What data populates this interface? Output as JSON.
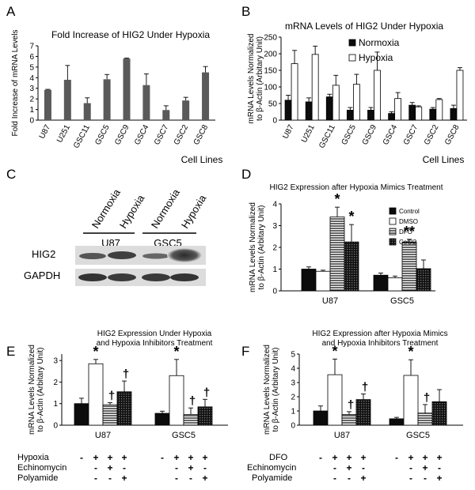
{
  "colors": {
    "bar_dark": "#5a5a5a",
    "bar_black": "#0c0c0c",
    "blot_bg": "#dcdcdc",
    "band": "#3a3a3a"
  },
  "panels": {
    "A": {
      "letter": "A"
    },
    "B": {
      "letter": "B"
    },
    "C": {
      "letter": "C",
      "col_labels": [
        "Normoxia",
        "Hypoxia",
        "Normoxia",
        "Hypoxia"
      ],
      "groups": [
        "U87",
        "GSC5"
      ],
      "rows": [
        "HIG2",
        "GAPDH"
      ]
    },
    "D": {
      "letter": "D"
    },
    "E": {
      "letter": "E",
      "table": {
        "rows": [
          {
            "label": "Hypoxia",
            "U87": [
              "-",
              "+",
              "+",
              "+"
            ],
            "GSC5": [
              "-",
              "+",
              "+",
              "+"
            ]
          },
          {
            "label": "Echinomycin",
            "U87": [
              "",
              "-",
              "+",
              "-"
            ],
            "GSC5": [
              "",
              "-",
              "+",
              "-"
            ]
          },
          {
            "label": "Polyamide",
            "U87": [
              "",
              "-",
              "-",
              "+"
            ],
            "GSC5": [
              "",
              "-",
              "-",
              "+"
            ]
          }
        ]
      }
    },
    "F": {
      "letter": "F",
      "table": {
        "rows": [
          {
            "label": "DFO",
            "U87": [
              "-",
              "+",
              "+",
              "+"
            ],
            "GSC5": [
              "-",
              "+",
              "+",
              "+"
            ]
          },
          {
            "label": "Echinomycin",
            "U87": [
              "",
              "-",
              "+",
              "-"
            ],
            "GSC5": [
              "",
              "-",
              "+",
              "-"
            ]
          },
          {
            "label": "Polyamide",
            "U87": [
              "",
              "-",
              "-",
              "+"
            ],
            "GSC5": [
              "",
              "-",
              "-",
              "+"
            ]
          }
        ]
      }
    }
  },
  "chart_data": [
    {
      "id": "A",
      "type": "bar",
      "title": "Fold Increase of HIG2 Under Hypoxia",
      "ylabel": "Fold Increase of mRNA Levels",
      "xlabel": "Cell Lines",
      "ylim": [
        0,
        7
      ],
      "yticks": [
        "0",
        "1",
        "2",
        "3",
        "4",
        "5",
        "6",
        "7"
      ],
      "categories": [
        "U87",
        "U251",
        "GSC11",
        "GSC5",
        "GSC9",
        "GSC4",
        "GSC7",
        "GSC2",
        "GSC8"
      ],
      "values": [
        2.85,
        3.8,
        1.6,
        3.85,
        5.8,
        3.3,
        0.95,
        1.85,
        4.5
      ],
      "errors": [
        0.05,
        1.35,
        0.5,
        0.45,
        0.05,
        1.05,
        0.4,
        0.3,
        0.55
      ]
    },
    {
      "id": "B",
      "type": "bar",
      "title": "mRNA Levels of HIG2 Under Hypoxia",
      "ylabel": "mRNA Levels Normalized to β-Actin (Arbitary Unit)",
      "xlabel": "Cell Lines",
      "ylim": [
        0,
        250
      ],
      "yticks": [
        "0",
        "50",
        "100",
        "150",
        "200",
        "250"
      ],
      "categories": [
        "U87",
        "U251",
        "GSC11",
        "GSC5",
        "GSC9",
        "GSC4",
        "GSC7",
        "GSC2",
        "GSC8"
      ],
      "legend": [
        "Normoxia",
        "Hypoxia"
      ],
      "series": [
        {
          "name": "Normoxia",
          "values": [
            60,
            55,
            70,
            30,
            30,
            20,
            45,
            33,
            35
          ],
          "errors": [
            15,
            12,
            8,
            8,
            8,
            5,
            8,
            5,
            10
          ]
        },
        {
          "name": "Hypoxia",
          "values": [
            170,
            198,
            105,
            108,
            150,
            65,
            40,
            62,
            150
          ],
          "errors": [
            40,
            25,
            30,
            30,
            55,
            18,
            3,
            3,
            8
          ]
        }
      ]
    },
    {
      "id": "D",
      "type": "bar",
      "title": "HIG2 Expression after Hypoxia Mimics Treatment",
      "ylabel": "mRNA Levels Normalized to β-Actin (Arbitary Unit)",
      "ylim": [
        0,
        4
      ],
      "yticks": [
        "0",
        "1",
        "2",
        "3",
        "4"
      ],
      "categories": [
        "U87",
        "GSC5"
      ],
      "legend": [
        "Control",
        "DMSO",
        "DFO",
        "CoCl2"
      ],
      "series": [
        {
          "name": "Control",
          "values": [
            1.0,
            0.72
          ],
          "errors": [
            0.1,
            0.1
          ]
        },
        {
          "name": "DMSO",
          "values": [
            0.9,
            0.6
          ],
          "errors": [
            0.05,
            0.08
          ]
        },
        {
          "name": "DFO",
          "values": [
            3.4,
            2.25
          ],
          "errors": [
            0.45,
            0.12
          ]
        },
        {
          "name": "CoCl2",
          "values": [
            2.25,
            1.02
          ],
          "errors": [
            0.8,
            0.4
          ]
        }
      ],
      "annotations": [
        {
          "group": 0,
          "bar": 2,
          "text": "*"
        },
        {
          "group": 0,
          "bar": 3,
          "text": "*"
        },
        {
          "group": 1,
          "bar": 2,
          "text": "**"
        }
      ]
    },
    {
      "id": "E",
      "type": "bar",
      "title": "HIG2 Expression Under Hypoxia\nand Hypoxia Inhibitors Treatment",
      "ylabel": "mRNA Levels Normalized to β-Actin (Arbitary Unit)",
      "ylim": [
        0,
        3.3
      ],
      "yticks": [
        "0",
        "1",
        "2",
        "3"
      ],
      "categories": [
        "U87",
        "GSC5"
      ],
      "series": [
        {
          "name": "1",
          "values": [
            1.0,
            0.55
          ],
          "errors": [
            0.25,
            0.1
          ]
        },
        {
          "name": "2",
          "values": [
            2.85,
            2.3
          ],
          "errors": [
            0.2,
            0.75
          ]
        },
        {
          "name": "3",
          "values": [
            0.95,
            0.5
          ],
          "errors": [
            0.1,
            0.3
          ]
        },
        {
          "name": "4",
          "values": [
            1.55,
            0.85
          ],
          "errors": [
            0.5,
            0.35
          ]
        }
      ],
      "annotations": [
        {
          "group": 0,
          "bar": 1,
          "text": "*"
        },
        {
          "group": 0,
          "bar": 2,
          "text": "†"
        },
        {
          "group": 0,
          "bar": 3,
          "text": "†"
        },
        {
          "group": 1,
          "bar": 1,
          "text": "*"
        },
        {
          "group": 1,
          "bar": 2,
          "text": "†"
        },
        {
          "group": 1,
          "bar": 3,
          "text": "†"
        }
      ]
    },
    {
      "id": "F",
      "type": "bar",
      "title": "HIG2 Expression after Hypoxia Mimics\nand Hypoxia Inhibitors Treatment",
      "ylabel": "mRNA Levels Normalized to β-Actin (Arbitary Unit)",
      "ylim": [
        0,
        5
      ],
      "yticks": [
        "0",
        "1",
        "2",
        "3",
        "4",
        "5"
      ],
      "categories": [
        "U87",
        "GSC5"
      ],
      "series": [
        {
          "name": "1",
          "values": [
            1.0,
            0.45
          ],
          "errors": [
            0.35,
            0.1
          ]
        },
        {
          "name": "2",
          "values": [
            3.55,
            3.5
          ],
          "errors": [
            1.1,
            1.1
          ]
        },
        {
          "name": "3",
          "values": [
            0.75,
            0.85
          ],
          "errors": [
            0.2,
            0.6
          ]
        },
        {
          "name": "4",
          "values": [
            1.8,
            1.65
          ],
          "errors": [
            0.4,
            0.85
          ]
        }
      ],
      "annotations": [
        {
          "group": 0,
          "bar": 1,
          "text": "*"
        },
        {
          "group": 0,
          "bar": 2,
          "text": "†"
        },
        {
          "group": 0,
          "bar": 3,
          "text": "†"
        },
        {
          "group": 1,
          "bar": 1,
          "text": "*"
        },
        {
          "group": 1,
          "bar": 2,
          "text": "†"
        }
      ]
    }
  ]
}
